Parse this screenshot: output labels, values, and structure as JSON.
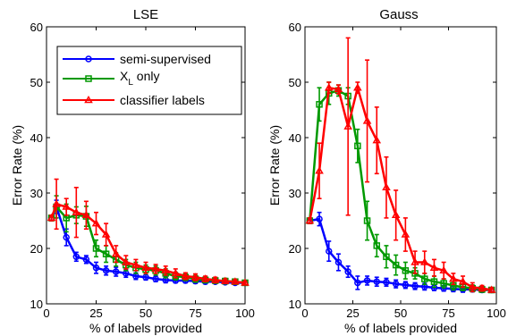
{
  "chart_data": [
    {
      "type": "line",
      "title": "LSE",
      "xlabel": "% of labels provided",
      "ylabel": "Error Rate (%)",
      "xlim": [
        0,
        100
      ],
      "ylim": [
        10,
        60
      ],
      "xticks": [
        0,
        25,
        50,
        75,
        100
      ],
      "yticks": [
        10,
        20,
        30,
        40,
        50,
        60
      ],
      "legend_position": "upper-left",
      "series": [
        {
          "name": "semi-supervised",
          "color": "#0000ff",
          "marker": "circle",
          "x": [
            2.5,
            5,
            10,
            15,
            20,
            25,
            30,
            35,
            40,
            45,
            50,
            55,
            60,
            65,
            70,
            75,
            80,
            85,
            90,
            95,
            100
          ],
          "y": [
            25.5,
            27.5,
            22,
            18.5,
            18,
            16.5,
            16,
            15.8,
            15.5,
            15,
            14.8,
            14.5,
            14.3,
            14.2,
            14.2,
            14.1,
            14,
            14,
            13.9,
            13.8,
            13.8
          ],
          "err": [
            0.5,
            1.2,
            1.5,
            0.8,
            0.7,
            1.0,
            0.8,
            0.8,
            0.7,
            0.6,
            0.5,
            0.5,
            0.5,
            0.4,
            0.4,
            0.4,
            0.4,
            0.3,
            0.3,
            0.3,
            0.3
          ]
        },
        {
          "name": "X_L only",
          "color": "#009900",
          "marker": "square",
          "x": [
            2.5,
            5,
            10,
            15,
            20,
            25,
            30,
            35,
            40,
            45,
            50,
            55,
            60,
            65,
            70,
            75,
            80,
            85,
            90,
            95,
            100
          ],
          "y": [
            25.5,
            27.5,
            25.5,
            26,
            25.8,
            20,
            19,
            18,
            17,
            16.5,
            16.2,
            16,
            15.5,
            15,
            14.8,
            14.5,
            14.3,
            14.2,
            14.1,
            14,
            13.8
          ],
          "err": [
            0.5,
            2.0,
            2.5,
            1.5,
            1.8,
            1.5,
            1.5,
            1.2,
            1.0,
            1.0,
            0.8,
            0.8,
            0.8,
            0.7,
            0.6,
            0.6,
            0.5,
            0.5,
            0.5,
            0.4,
            0.3
          ]
        },
        {
          "name": "classifier labels",
          "color": "#ff0000",
          "marker": "triangle",
          "x": [
            2.5,
            5,
            10,
            15,
            20,
            25,
            30,
            35,
            40,
            45,
            50,
            55,
            60,
            65,
            70,
            75,
            80,
            85,
            90,
            95,
            100
          ],
          "y": [
            25.5,
            28,
            27.5,
            26.5,
            26,
            24.5,
            22.5,
            19,
            17.5,
            17,
            16.5,
            16.3,
            16,
            15.5,
            15,
            14.8,
            14.5,
            14.3,
            14.1,
            14,
            13.8
          ],
          "err": [
            0.5,
            4.5,
            1.5,
            4.5,
            2.5,
            2.0,
            2.0,
            1.5,
            1.2,
            1.0,
            1.0,
            0.8,
            0.8,
            0.8,
            0.6,
            0.6,
            0.5,
            0.5,
            0.4,
            0.4,
            0.3
          ]
        }
      ]
    },
    {
      "type": "line",
      "title": "Gauss",
      "xlabel": "% of labels provided",
      "ylabel": "Error Rate (%)",
      "xlim": [
        0,
        100
      ],
      "ylim": [
        10,
        60
      ],
      "xticks": [
        0,
        25,
        50,
        75,
        100
      ],
      "yticks": [
        10,
        20,
        30,
        40,
        50,
        60
      ],
      "series": [
        {
          "name": "semi-supervised",
          "color": "#0000ff",
          "marker": "circle",
          "x": [
            2.5,
            7.5,
            12.5,
            17.5,
            22.5,
            27.5,
            32.5,
            37.5,
            42.5,
            47.5,
            52.5,
            57.5,
            62.5,
            67.5,
            72.5,
            77.5,
            82.5,
            87.5,
            92.5,
            97.5
          ],
          "y": [
            25,
            25.3,
            19.5,
            17.5,
            15.8,
            13.8,
            14.2,
            14,
            13.9,
            13.6,
            13.4,
            13.2,
            13.1,
            12.9,
            12.8,
            12.7,
            12.6,
            12.6,
            12.5,
            12.5
          ],
          "err": [
            0.5,
            1.2,
            1.8,
            1.5,
            1.0,
            1.2,
            0.8,
            0.8,
            0.7,
            0.7,
            0.6,
            0.6,
            0.6,
            0.5,
            0.5,
            0.5,
            0.5,
            0.4,
            0.4,
            0.3
          ]
        },
        {
          "name": "X_L only",
          "color": "#009900",
          "marker": "square",
          "x": [
            2.5,
            7.5,
            12.5,
            17.5,
            22.5,
            27.5,
            32.5,
            37.5,
            42.5,
            47.5,
            52.5,
            57.5,
            62.5,
            67.5,
            72.5,
            77.5,
            82.5,
            87.5,
            92.5,
            97.5
          ],
          "y": [
            25,
            46,
            48,
            48.5,
            47.5,
            38.5,
            25,
            20.5,
            18.5,
            17,
            16,
            15.5,
            14.5,
            14,
            13.7,
            13.3,
            13,
            12.8,
            12.6,
            12.5
          ],
          "err": [
            0.5,
            3.0,
            2.0,
            1.0,
            1.5,
            3.0,
            3.5,
            2.0,
            2.0,
            1.8,
            1.5,
            1.0,
            1.0,
            1.0,
            0.8,
            0.8,
            0.6,
            0.6,
            0.5,
            0.4
          ]
        },
        {
          "name": "classifier labels",
          "color": "#ff0000",
          "marker": "triangle",
          "x": [
            2.5,
            7.5,
            12.5,
            17.5,
            22.5,
            27.5,
            32.5,
            37.5,
            42.5,
            47.5,
            52.5,
            57.5,
            62.5,
            67.5,
            72.5,
            77.5,
            82.5,
            87.5,
            92.5,
            97.5
          ],
          "y": [
            25,
            34,
            49,
            48.7,
            42,
            49,
            43,
            39.5,
            31,
            26,
            22.5,
            17.5,
            17.5,
            16.5,
            16,
            14.5,
            14,
            13,
            12.8,
            12.5
          ],
          "err": [
            0.5,
            5.0,
            1.0,
            0.8,
            16.0,
            1.0,
            11.0,
            6.0,
            5.5,
            4.5,
            3.0,
            2.0,
            2.0,
            1.5,
            1.5,
            1.0,
            1.0,
            0.8,
            0.5,
            0.4
          ]
        }
      ]
    }
  ],
  "legend": {
    "items": [
      {
        "label": "semi-supervised",
        "color": "#0000ff",
        "marker": "circle"
      },
      {
        "label_main": "X",
        "label_sub": "L",
        "label_rest": " only",
        "color": "#009900",
        "marker": "square"
      },
      {
        "label": "classifier labels",
        "color": "#ff0000",
        "marker": "triangle"
      }
    ]
  }
}
